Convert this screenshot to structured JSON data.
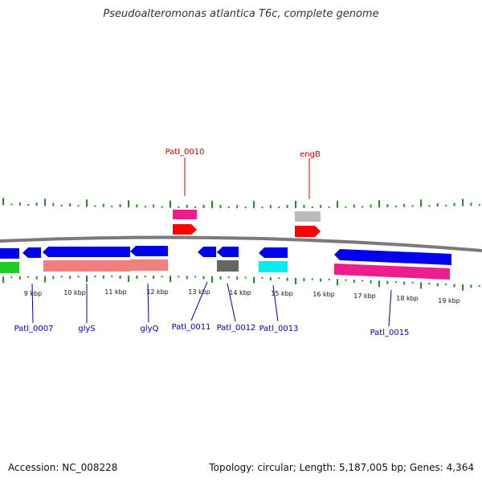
{
  "title": "Pseudoalteromonas atlantica T6c, complete genome",
  "footer": {
    "accession": "Accession: NC_008228",
    "topology": "Topology: circular; Length: 5,187,005 bp; Genes: 4,364"
  },
  "kbp_labels": [
    "9 kbp",
    "10 kbp",
    "11 kbp",
    "12 kbp",
    "13 kbp",
    "14 kbp",
    "15 kbp",
    "16 kbp",
    "17 kbp",
    "18 kbp",
    "19 kbp"
  ],
  "gene_labels": [
    {
      "text": "Patl_0010",
      "color": "#cc0000"
    },
    {
      "text": "engB",
      "color": "#cc0000"
    },
    {
      "text": "Patl_0007",
      "color": "#0000aa"
    },
    {
      "text": "glyS",
      "color": "#0000aa"
    },
    {
      "text": "glyQ",
      "color": "#0000aa"
    },
    {
      "text": "Patl_0011",
      "color": "#0000aa"
    },
    {
      "text": "Patl_0012",
      "color": "#0000aa"
    },
    {
      "text": "Patl_0013",
      "color": "#0000aa"
    },
    {
      "text": "Patl_0015",
      "color": "#0000aa"
    }
  ],
  "colors": {
    "forward_cds": "#ff0000",
    "reverse_cds": "#0000ee",
    "backbone": "#7a7a7a",
    "gc_tick": "#2a8a2a",
    "magenta": "#ee1c8c",
    "salmon": "#f08080",
    "grey_feature": "#666666",
    "light_grey_feature": "#bbbbbb",
    "cyan": "#00eeee",
    "green": "#22cc22"
  }
}
